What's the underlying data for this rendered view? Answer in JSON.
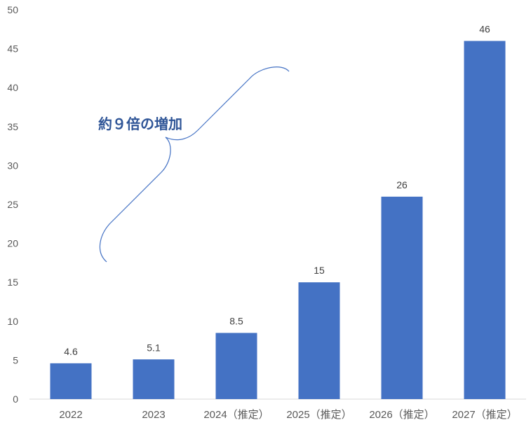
{
  "chart_data": {
    "type": "bar",
    "categories": [
      "2022",
      "2023",
      "2024（推定）",
      "2025（推定）",
      "2026（推定）",
      "2027（推定）"
    ],
    "values": [
      4.6,
      5.1,
      8.5,
      15,
      26,
      46
    ],
    "data_labels": [
      "4.6",
      "5.1",
      "8.5",
      "15",
      "26",
      "46"
    ],
    "ylim": [
      0,
      50
    ],
    "yticks": [
      0,
      5,
      10,
      15,
      20,
      25,
      30,
      35,
      40,
      45,
      50
    ],
    "grid": false,
    "bar_color": "#4472c4",
    "annotation": "約９倍の増加",
    "title": "",
    "xlabel": "",
    "ylabel": ""
  }
}
